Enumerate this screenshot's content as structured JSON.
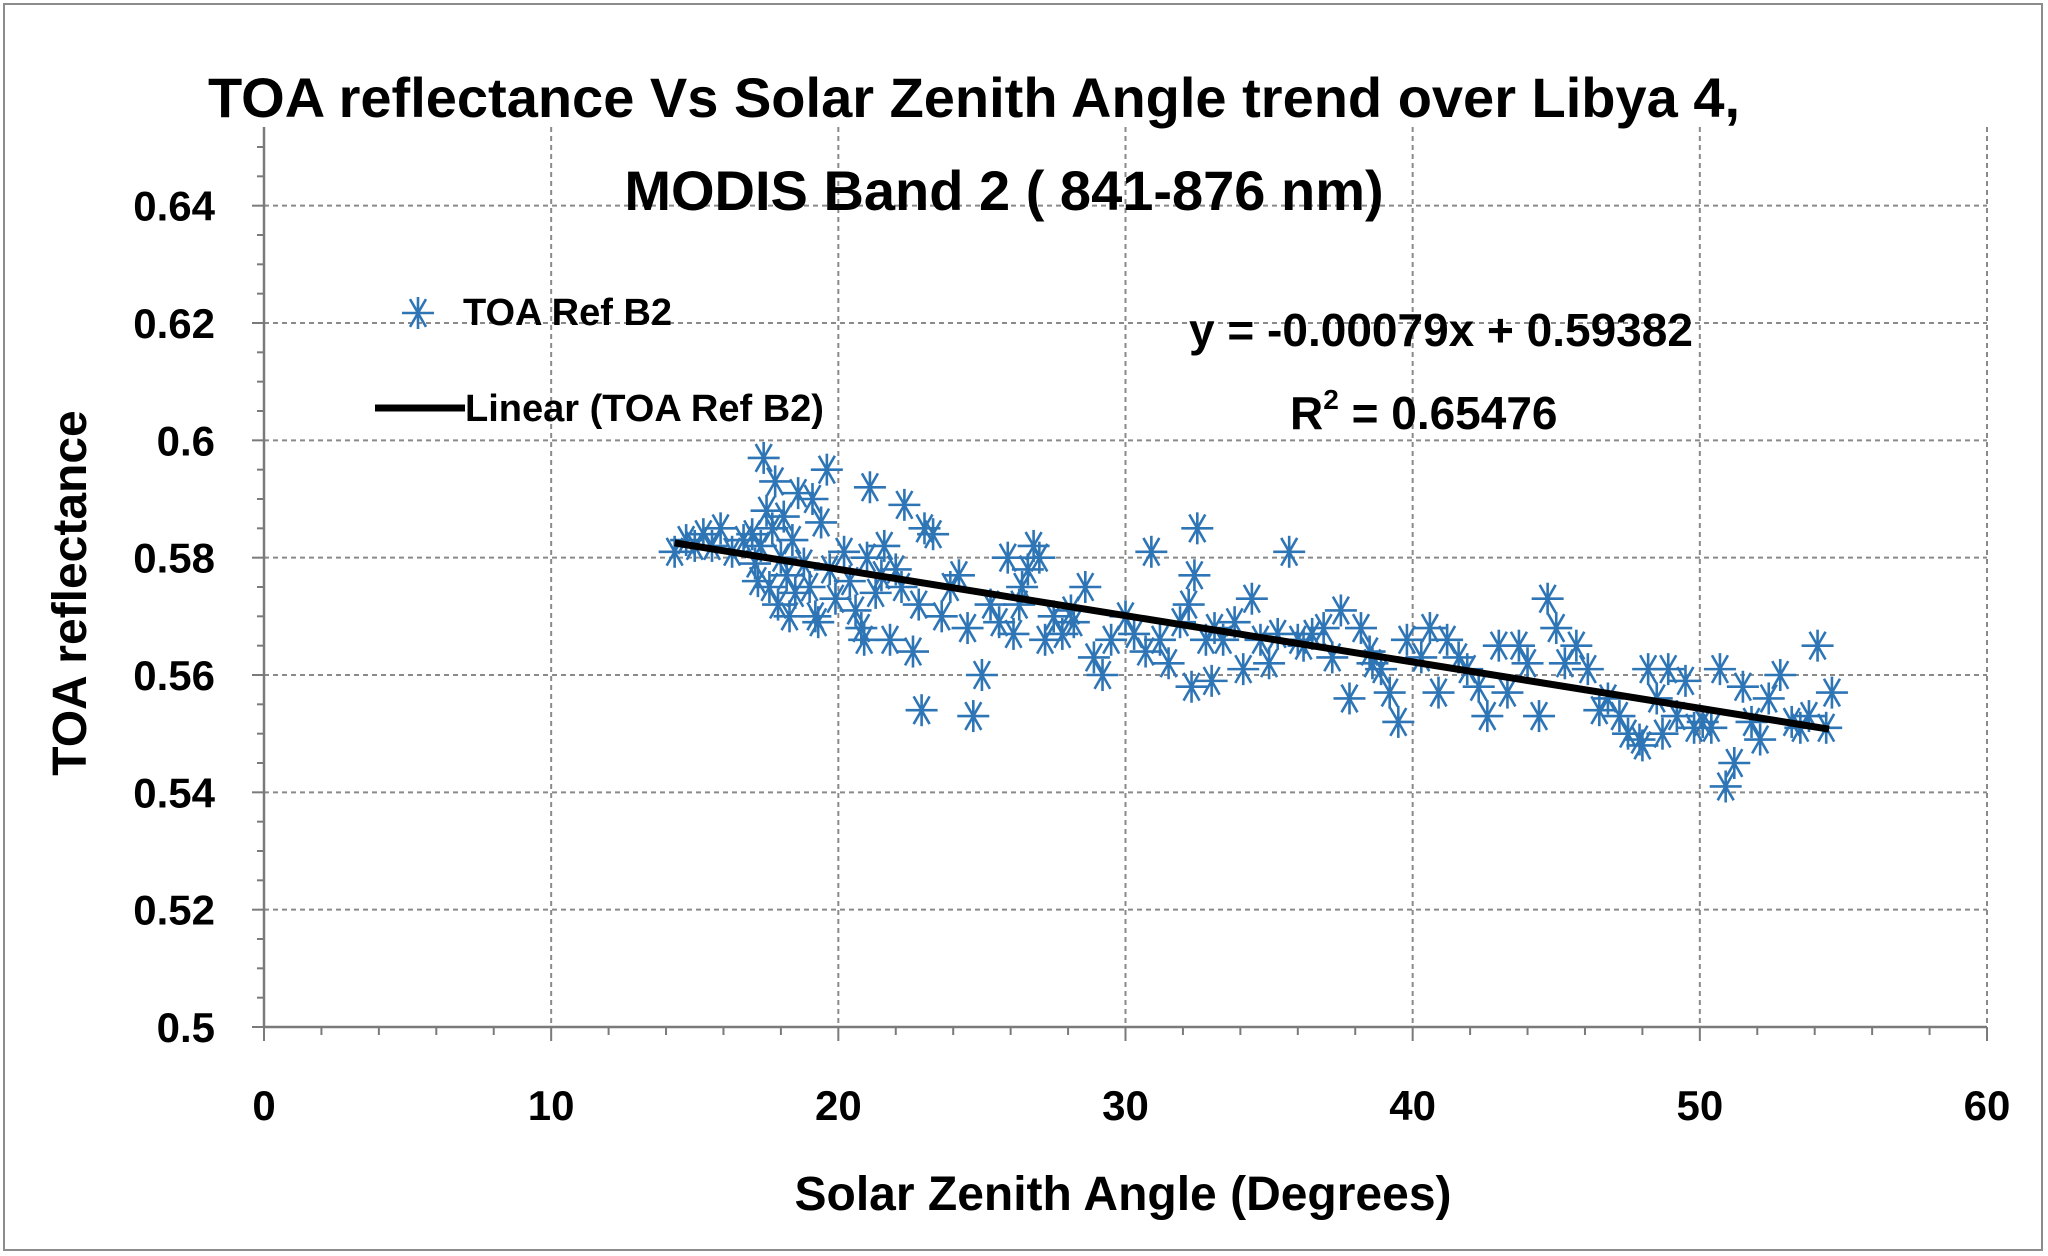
{
  "chart_data": {
    "type": "scatter",
    "title_lines": [
      "TOA reflectance Vs Solar Zenith Angle trend over Libya 4,",
      "MODIS Band 2  ( 841-876 nm)"
    ],
    "xlabel": "Solar Zenith Angle (Degrees)",
    "ylabel": "TOA reflectance",
    "xlim": [
      0,
      60
    ],
    "ylim": [
      0.5,
      0.65
    ],
    "x_ticks": [
      0,
      10,
      20,
      30,
      40,
      50,
      60
    ],
    "x_tick_labels": [
      "0",
      "10",
      "20",
      "30",
      "40",
      "50",
      "60"
    ],
    "y_ticks": [
      0.5,
      0.52,
      0.54,
      0.56,
      0.58,
      0.6,
      0.62,
      0.64
    ],
    "y_tick_labels": [
      "0.5",
      "0.52",
      "0.54",
      "0.56",
      "0.58",
      "0.6",
      "0.62",
      "0.64"
    ],
    "grid": true,
    "legend_position": "top-left",
    "legend": {
      "scatter_label": "TOA Ref B2",
      "trend_label": "Linear (TOA Ref B2)"
    },
    "series": [
      {
        "name": "TOA Ref B2",
        "marker": "asterisk",
        "color": "#2e75b6",
        "points": [
          [
            14.3,
            0.581
          ],
          [
            14.7,
            0.583
          ],
          [
            15.0,
            0.582
          ],
          [
            15.3,
            0.584
          ],
          [
            15.6,
            0.582
          ],
          [
            15.9,
            0.585
          ],
          [
            16.3,
            0.581
          ],
          [
            16.7,
            0.583
          ],
          [
            17.0,
            0.584
          ],
          [
            17.1,
            0.579
          ],
          [
            17.2,
            0.576
          ],
          [
            17.3,
            0.582
          ],
          [
            17.4,
            0.597
          ],
          [
            17.5,
            0.588
          ],
          [
            17.6,
            0.575
          ],
          [
            17.7,
            0.585
          ],
          [
            17.8,
            0.593
          ],
          [
            17.9,
            0.572
          ],
          [
            18.0,
            0.58
          ],
          [
            18.1,
            0.587
          ],
          [
            18.2,
            0.577
          ],
          [
            18.4,
            0.583
          ],
          [
            18.5,
            0.574
          ],
          [
            18.6,
            0.591
          ],
          [
            18.8,
            0.579
          ],
          [
            19.0,
            0.575
          ],
          [
            19.1,
            0.59
          ],
          [
            19.2,
            0.57
          ],
          [
            19.4,
            0.586
          ],
          [
            19.6,
            0.595
          ],
          [
            19.7,
            0.578
          ],
          [
            19.9,
            0.573
          ],
          [
            20.2,
            0.581
          ],
          [
            20.4,
            0.576
          ],
          [
            20.6,
            0.571
          ],
          [
            20.8,
            0.568
          ],
          [
            21.0,
            0.58
          ],
          [
            21.1,
            0.592
          ],
          [
            21.3,
            0.574
          ],
          [
            21.5,
            0.577
          ],
          [
            21.6,
            0.582
          ],
          [
            21.8,
            0.566
          ],
          [
            22.0,
            0.578
          ],
          [
            22.2,
            0.575
          ],
          [
            22.3,
            0.589
          ],
          [
            22.6,
            0.564
          ],
          [
            22.8,
            0.572
          ],
          [
            22.9,
            0.554
          ],
          [
            23.0,
            0.585
          ],
          [
            23.3,
            0.584
          ],
          [
            23.6,
            0.57
          ],
          [
            23.9,
            0.575
          ],
          [
            24.2,
            0.577
          ],
          [
            24.5,
            0.568
          ],
          [
            24.7,
            0.553
          ],
          [
            25.0,
            0.56
          ],
          [
            25.3,
            0.572
          ],
          [
            25.6,
            0.569
          ],
          [
            25.9,
            0.58
          ],
          [
            26.1,
            0.567
          ],
          [
            26.4,
            0.575
          ],
          [
            26.6,
            0.578
          ],
          [
            26.8,
            0.582
          ],
          [
            27.0,
            0.58
          ],
          [
            27.2,
            0.566
          ],
          [
            27.5,
            0.57
          ],
          [
            27.8,
            0.567
          ],
          [
            28.2,
            0.569
          ],
          [
            28.6,
            0.575
          ],
          [
            28.9,
            0.563
          ],
          [
            29.2,
            0.56
          ],
          [
            29.5,
            0.566
          ],
          [
            30.0,
            0.57
          ],
          [
            30.3,
            0.567
          ],
          [
            30.7,
            0.564
          ],
          [
            30.9,
            0.581
          ],
          [
            31.2,
            0.566
          ],
          [
            31.5,
            0.562
          ],
          [
            31.9,
            0.569
          ],
          [
            32.2,
            0.572
          ],
          [
            32.3,
            0.558
          ],
          [
            32.5,
            0.585
          ],
          [
            32.4,
            0.577
          ],
          [
            32.8,
            0.566
          ],
          [
            33.1,
            0.568
          ],
          [
            33.4,
            0.566
          ],
          [
            33.8,
            0.569
          ],
          [
            34.1,
            0.561
          ],
          [
            34.4,
            0.573
          ],
          [
            34.7,
            0.566
          ],
          [
            35.0,
            0.562
          ],
          [
            35.3,
            0.567
          ],
          [
            35.7,
            0.581
          ],
          [
            36.2,
            0.565
          ],
          [
            36.5,
            0.567
          ],
          [
            36.9,
            0.568
          ],
          [
            37.2,
            0.563
          ],
          [
            37.5,
            0.571
          ],
          [
            37.8,
            0.556
          ],
          [
            38.2,
            0.568
          ],
          [
            38.5,
            0.564
          ],
          [
            38.9,
            0.561
          ],
          [
            39.2,
            0.557
          ],
          [
            39.5,
            0.552
          ],
          [
            39.8,
            0.566
          ],
          [
            40.3,
            0.563
          ],
          [
            40.6,
            0.568
          ],
          [
            40.9,
            0.557
          ],
          [
            41.2,
            0.566
          ],
          [
            41.6,
            0.563
          ],
          [
            41.9,
            0.561
          ],
          [
            42.3,
            0.558
          ],
          [
            42.6,
            0.553
          ],
          [
            43.0,
            0.565
          ],
          [
            43.3,
            0.557
          ],
          [
            43.7,
            0.565
          ],
          [
            44.0,
            0.562
          ],
          [
            44.4,
            0.553
          ],
          [
            44.7,
            0.573
          ],
          [
            45.0,
            0.568
          ],
          [
            45.3,
            0.562
          ],
          [
            45.7,
            0.565
          ],
          [
            46.1,
            0.561
          ],
          [
            46.5,
            0.554
          ],
          [
            46.8,
            0.556
          ],
          [
            47.2,
            0.553
          ],
          [
            47.5,
            0.55
          ],
          [
            47.9,
            0.549
          ],
          [
            48.2,
            0.561
          ],
          [
            48.5,
            0.556
          ],
          [
            48.7,
            0.55
          ],
          [
            48.9,
            0.561
          ],
          [
            49.2,
            0.553
          ],
          [
            49.5,
            0.559
          ],
          [
            49.8,
            0.551
          ],
          [
            50.1,
            0.552
          ],
          [
            50.4,
            0.551
          ],
          [
            50.7,
            0.561
          ],
          [
            50.9,
            0.541
          ],
          [
            51.2,
            0.545
          ],
          [
            51.5,
            0.558
          ],
          [
            51.8,
            0.552
          ],
          [
            52.1,
            0.549
          ],
          [
            52.4,
            0.556
          ],
          [
            52.8,
            0.56
          ],
          [
            53.2,
            0.552
          ],
          [
            53.5,
            0.551
          ],
          [
            53.8,
            0.553
          ],
          [
            54.1,
            0.565
          ],
          [
            54.4,
            0.551
          ],
          [
            54.6,
            0.557
          ],
          [
            48.0,
            0.548
          ],
          [
            18.3,
            0.57
          ],
          [
            19.3,
            0.569
          ],
          [
            20.9,
            0.566
          ],
          [
            26.3,
            0.572
          ],
          [
            28.1,
            0.571
          ],
          [
            33.0,
            0.559
          ],
          [
            36.0,
            0.566
          ],
          [
            38.6,
            0.562
          ]
        ]
      }
    ],
    "trendline": {
      "name": "Linear (TOA Ref B2)",
      "slope": -0.00079,
      "intercept": 0.59382,
      "x_range": [
        14.3,
        54.5
      ],
      "color": "#000000"
    },
    "annotations": {
      "equation": "y = -0.00079x + 0.59382",
      "r2_prefix": "R",
      "r2_sup": "2",
      "r2_value": " = 0.65476"
    }
  }
}
